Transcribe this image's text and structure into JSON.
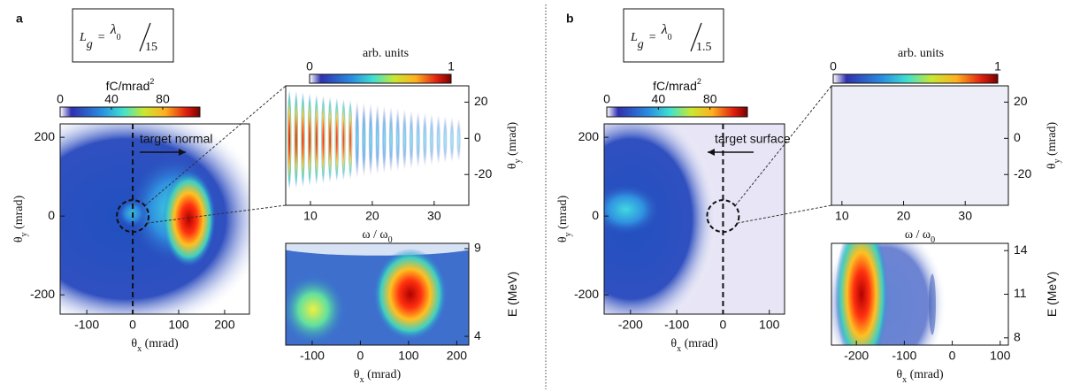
{
  "panels": [
    {
      "label": "a",
      "formula": {
        "symbol": "L",
        "subscript": "g",
        "equals": "=",
        "numerator": "λ",
        "numerator_subscript": "0",
        "denominator": "15"
      },
      "annotation": "target normal",
      "plots": [
        {
          "colorbar": {
            "label": {
              "main": "fC/mrad",
              "sup": "2"
            },
            "lim": [
              0,
              109
            ],
            "ticks": [
              0,
              40,
              80
            ]
          },
          "xlabel": {
            "main": "θ",
            "sub": "x",
            "rest": " (mrad)"
          },
          "ylabel": {
            "main": "θ",
            "sub": "y",
            "rest": " (mrad)"
          },
          "xlim": [
            -158,
            254
          ],
          "xticks": [
            -100,
            0,
            100,
            200
          ],
          "ylim": [
            -249,
            234
          ],
          "yticks": [
            -200,
            0,
            200
          ]
        },
        {
          "colorbar": {
            "label": {
              "main": "arb. units"
            },
            "lim": [
              0,
              1
            ],
            "ticks": [
              0,
              1
            ]
          },
          "xlabel": {
            "main": "ω / ω",
            "sub": "0"
          },
          "ylabel": {
            "main": "θ",
            "sub": "y",
            "rest": " (mrad)"
          },
          "xlim": [
            6,
            35.6
          ],
          "xticks": [
            10,
            20,
            30
          ],
          "ylim": [
            -37,
            29
          ],
          "yticks": [
            -20,
            0,
            20
          ]
        },
        {
          "xlabel": {
            "main": "θ",
            "sub": "x",
            "rest": " (mrad)"
          },
          "ylabel": {
            "main": "E (MeV)"
          },
          "xlim": [
            -155,
            225
          ],
          "xticks": [
            -100,
            0,
            100,
            200
          ],
          "ylim": [
            3.5,
            9.3
          ],
          "yticks": [
            4,
            9
          ]
        }
      ]
    },
    {
      "label": "b",
      "formula": {
        "symbol": "L",
        "subscript": "g",
        "equals": "=",
        "numerator": "λ",
        "numerator_subscript": "0",
        "denominator": "1.5"
      },
      "annotation": "target surface",
      "plots": [
        {
          "colorbar": {
            "label": {
              "main": "fC/mrad",
              "sup": "2"
            },
            "lim": [
              0,
              109
            ],
            "ticks": [
              0,
              40,
              80
            ]
          },
          "xlabel": {
            "main": "θ",
            "sub": "x",
            "rest": " (mrad)"
          },
          "ylabel": {
            "main": "θ",
            "sub": "y",
            "rest": " (mrad)"
          },
          "xlim": [
            -257,
            133
          ],
          "xticks": [
            -200,
            -100,
            0,
            100
          ],
          "ylim": [
            -249,
            234
          ],
          "yticks": [
            -200,
            0,
            200
          ]
        },
        {
          "colorbar": {
            "label": {
              "main": "arb. units"
            },
            "lim": [
              0,
              1
            ],
            "ticks": [
              0,
              1
            ]
          },
          "xlabel": {
            "main": "ω / ω",
            "sub": "0"
          },
          "ylabel": {
            "main": "θ",
            "sub": "y",
            "rest": " (mrad)"
          },
          "xlim": [
            8.3,
            37
          ],
          "xticks": [
            10,
            20,
            30
          ],
          "ylim": [
            -37,
            29
          ],
          "yticks": [
            -20,
            0,
            20
          ]
        },
        {
          "xlabel": {
            "main": "θ",
            "sub": "x",
            "rest": " (mrad)"
          },
          "ylabel": {
            "main": "E (MeV)"
          },
          "xlim": [
            -252,
            117
          ],
          "xticks": [
            -200,
            -100,
            0,
            100
          ],
          "ylim": [
            7.5,
            14.5
          ],
          "yticks": [
            8,
            11,
            14
          ]
        }
      ]
    }
  ]
}
